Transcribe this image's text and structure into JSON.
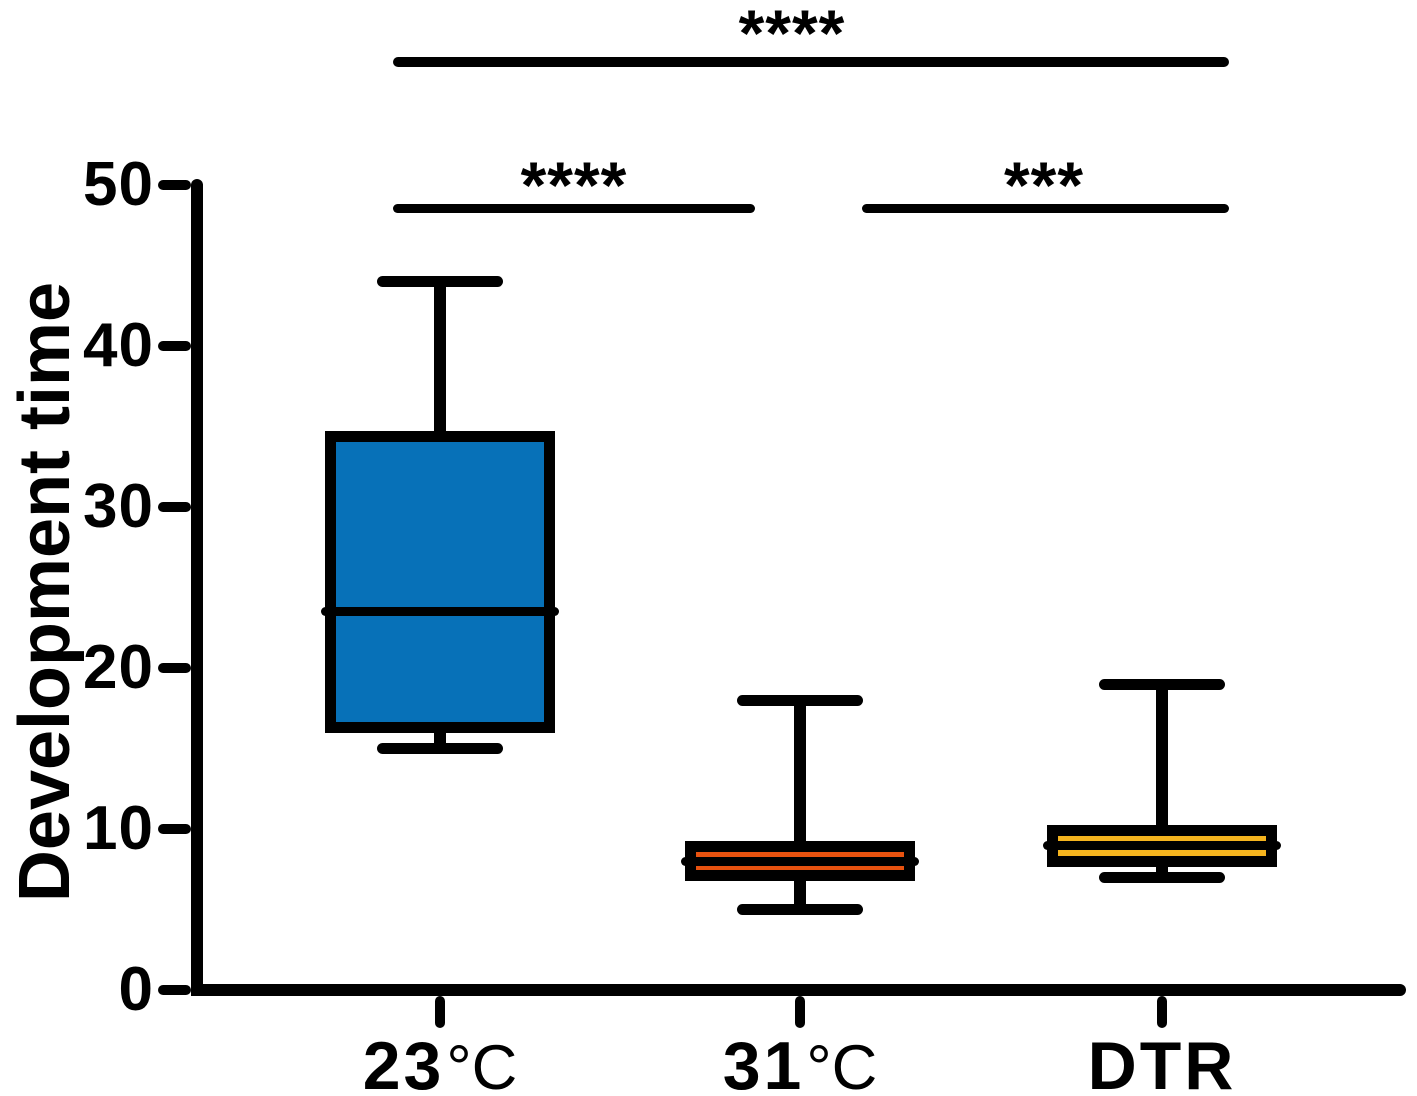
{
  "figure": {
    "background": "#ffffff",
    "ink_color": "#000000"
  },
  "chart_data": {
    "type": "box",
    "title": "",
    "xlabel": "",
    "ylabel": "Development time",
    "ylim": [
      0,
      50
    ],
    "yticks": [
      50,
      40,
      30,
      20,
      10,
      0
    ],
    "grid": false,
    "legend": "none",
    "categories": [
      "23°C",
      "31°C",
      "DTR"
    ],
    "series": [
      {
        "name": "23°C",
        "min": 15,
        "q1": 16.3,
        "median": 23.5,
        "q3": 34.4,
        "max": 44,
        "fill": "#0771B8"
      },
      {
        "name": "31°C",
        "min": 5,
        "q1": 7.1,
        "median": 8,
        "q3": 8.9,
        "max": 18,
        "fill": "#E8520F"
      },
      {
        "name": "DTR",
        "min": 7,
        "q1": 8.0,
        "median": 9,
        "q3": 9.9,
        "max": 19,
        "fill": "#F5B41E"
      }
    ],
    "significance": [
      {
        "group1": "23°C",
        "group2": "DTR",
        "label": "****",
        "level": "top"
      },
      {
        "group1": "23°C",
        "group2": "31°C",
        "label": "****",
        "level": "inner"
      },
      {
        "group1": "31°C",
        "group2": "DTR",
        "label": "***",
        "level": "inner"
      }
    ]
  },
  "x_axis": {
    "labels": [
      {
        "value": "23",
        "unit": "°C"
      },
      {
        "value": "31",
        "unit": "°C"
      },
      {
        "value": "DTR",
        "unit": ""
      }
    ]
  }
}
